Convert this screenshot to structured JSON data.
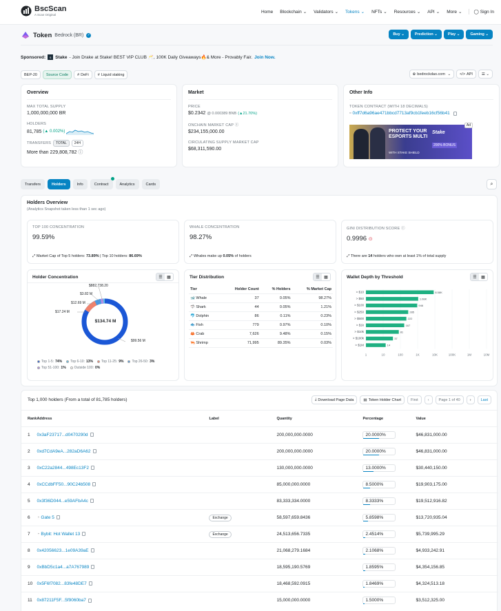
{
  "header": {
    "brand": "BscScan",
    "brand_sub": "A Scan Original",
    "nav": [
      "Home",
      "Blockchain",
      "Validators",
      "Tokens",
      "NFTs",
      "Resources",
      "API",
      "More"
    ],
    "signin": "Sign In"
  },
  "token": {
    "label": "Token",
    "name": "Bedrock (BR)",
    "buttons": [
      "Buy",
      "Prediction",
      "Play",
      "Gaming"
    ]
  },
  "sponsor": {
    "label": "Sponsored:",
    "brand": "Stake",
    "text": " - Join Drake at Stake! BEST VIP CLUB 🥂, 100K Daily Giveaways🔥& More - Provably Fair.",
    "link": "Join Now."
  },
  "tags": [
    "BEP-20",
    "Source Code",
    "DeFi",
    "Liquid staking"
  ],
  "site_link": "bedrockdao.com",
  "api_label": "API",
  "overview": {
    "title": "Overview",
    "max_supply_label": "MAX TOTAL SUPPLY",
    "max_supply": "1,000,000,000 BR",
    "holders_label": "HOLDERS",
    "holders": "81,785",
    "holders_change": "(▲ 0.002%)",
    "transfers_label": "TRANSFERS",
    "transfer_tabs": [
      "TOTAL",
      "24H"
    ],
    "transfers": "More than 229,808,782"
  },
  "market": {
    "title": "Market",
    "price_label": "PRICE",
    "price": "$0.2342",
    "price_bnb": "@ 0.000389 BNB",
    "price_change": "(▲21.70%)",
    "onchain_cap_label": "ONCHAIN MARKET CAP",
    "onchain_cap": "$234,155,000.00",
    "circ_cap_label": "CIRCULATING SUPPLY MARKET CAP",
    "circ_cap": "$68,311,590.00"
  },
  "other": {
    "title": "Other Info",
    "contract_label": "TOKEN CONTRACT (WITH 18 DECIMALS)",
    "contract": "0xff7d6a96ae471bbcd7713af9cb1feeb16cf56b41",
    "ad_badge": "Ad",
    "ad_headline": "PROTECT YOUR ESPORTS MULTI",
    "ad_sub": "WITH STAKE SHIELD",
    "ad_brand": "Stake",
    "ad_bonus": "200% BONUS"
  },
  "page_tabs": [
    "Transfers",
    "Holders",
    "Info",
    "Contract",
    "Analytics",
    "Cards"
  ],
  "holders_overview": {
    "title": "Holders Overview",
    "snapshot": "(Analytics Snapshot taken less than 1 sec ago)",
    "top100_label": "TOP 100 CONCENTRATION",
    "top100": "99.59%",
    "top100_note_a": "Market Cap of Top 5 holders: ",
    "top100_note_b": "73.89%",
    "top100_note_c": " | Top 10 holders: ",
    "top100_note_d": "86.69%",
    "whale_label": "WHALE CONCENTRATION",
    "whale": "98.27%",
    "whale_note_a": "Whales make up ",
    "whale_note_b": "0.05%",
    "whale_note_c": " of holders",
    "gini_label": "GINI DISTRIBUTION SCORE",
    "gini": "0.9996",
    "gini_note_a": "There are ",
    "gini_note_b": "14",
    "gini_note_c": " holders who own at least 1% of total supply"
  },
  "concentration": {
    "title": "Holder Concentration",
    "center": "$134.74 M",
    "labels": [
      "$882,738.20",
      "$3.82 M",
      "$12.69 M",
      "$17.24 M",
      "$99.56 M"
    ],
    "legend": [
      {
        "name": "Top 1-5:",
        "pct": "74%",
        "color": "#1b57d6"
      },
      {
        "name": "Top 6-10:",
        "pct": "13%",
        "color": "#5bc0e6"
      },
      {
        "name": "Top 11-25:",
        "pct": "9%",
        "color": "#f0826c"
      },
      {
        "name": "Top 26-50:",
        "pct": "3%",
        "color": "#4a98e0"
      },
      {
        "name": "Top 51-100:",
        "pct": "1%",
        "color": "#b48de8"
      },
      {
        "name": "Outside 100:",
        "pct": "0%",
        "color": "#ffffff"
      }
    ]
  },
  "tier": {
    "title": "Tier Distribution",
    "headers": [
      "Tier",
      "Holder Count",
      "% Holders",
      "% Market Cap"
    ],
    "rows": [
      {
        "icon": "whale-icon",
        "name": "Whale",
        "count": "37",
        "holders": "0.05%",
        "cap": "98.27%"
      },
      {
        "icon": "shark-icon",
        "name": "Shark",
        "count": "44",
        "holders": "0.05%",
        "cap": "1.21%"
      },
      {
        "icon": "dolphin-icon",
        "name": "Dolphin",
        "count": "86",
        "holders": "0.11%",
        "cap": "0.23%"
      },
      {
        "icon": "fish-icon",
        "name": "Fish",
        "count": "779",
        "holders": "0.97%",
        "cap": "0.10%"
      },
      {
        "icon": "crab-icon",
        "name": "Crab",
        "count": "7,626",
        "holders": "9.48%",
        "cap": "0.15%"
      },
      {
        "icon": "shrimp-icon",
        "name": "Shrimp",
        "count": "71,995",
        "holders": "89.35%",
        "cap": "0.03%"
      }
    ]
  },
  "chart_data": {
    "type": "bar",
    "title": "Wallet Depth by Threshold",
    "orientation": "horizontal",
    "scale": "log",
    "categories": [
      "> $10",
      "> $50",
      "> $100",
      "> $250",
      "> $500",
      "> $1k",
      "> $10k",
      "> $100k",
      "> $1M"
    ],
    "values": [
      8580,
      1080,
      946,
      285,
      222,
      167,
      81,
      37,
      14
    ],
    "value_labels": [
      "8.58K",
      "1.08K",
      "946",
      "285",
      "222",
      "167",
      "81",
      "37",
      "14"
    ],
    "xticks": [
      "1",
      "10",
      "100",
      "1K",
      "10K",
      "100K",
      "1M",
      "10M"
    ]
  },
  "holders_table": {
    "title": "Top 1,000 holders (From a total of 81,785 holders)",
    "download": "Download Page Data",
    "chart_btn": "Token Holder Chart",
    "first": "First",
    "page": "Page 1 of 40",
    "last": "Last",
    "headers": [
      "Rank",
      "Address",
      "Label",
      "Quantity",
      "Percentage",
      "Value"
    ],
    "rows": [
      {
        "rank": "1",
        "addr": "0x3aF23717...d0470290d",
        "label": "",
        "qty": "200,000,000.0000",
        "pct": "20.0000%",
        "pctv": 0.2,
        "value": "$46,831,000.00"
      },
      {
        "rank": "2",
        "addr": "0xd7CdA9eA...282aD6A62",
        "label": "",
        "qty": "200,000,000.0000",
        "pct": "20.0000%",
        "pctv": 0.2,
        "value": "$46,831,000.00"
      },
      {
        "rank": "3",
        "addr": "0xC22a2844...498Ec13F2",
        "label": "",
        "qty": "130,000,000.0000",
        "pct": "13.0000%",
        "pctv": 0.13,
        "value": "$30,440,150.00"
      },
      {
        "rank": "4",
        "addr": "0xCCdbFF50...90C24b508",
        "label": "",
        "qty": "85,000,000.0000",
        "pct": "8.5000%",
        "pctv": 0.085,
        "value": "$19,903,175.00"
      },
      {
        "rank": "5",
        "addr": "0x3f36D044...e59AFbA4c",
        "label": "",
        "qty": "83,333,334.0000",
        "pct": "8.3333%",
        "pctv": 0.083,
        "value": "$19,512,916.82"
      },
      {
        "rank": "6",
        "addr": "Gate 5",
        "label": "Exchange",
        "qty": "58,597,659.8436",
        "pct": "5.8598%",
        "pctv": 0.059,
        "value": "$13,720,935.04"
      },
      {
        "rank": "7",
        "addr": "Bybit: Hot Wallet 13",
        "label": "Exchange",
        "qty": "24,513,656.7335",
        "pct": "2.4514%",
        "pctv": 0.025,
        "value": "$5,739,995.29"
      },
      {
        "rank": "8",
        "addr": "0x42056623...1e09A39aE",
        "label": "",
        "qty": "21,068,279.1684",
        "pct": "2.1068%",
        "pctv": 0.021,
        "value": "$4,933,242.91"
      },
      {
        "rank": "9",
        "addr": "0xBbD5c1a4...a7A767989",
        "label": "",
        "qty": "18,595,190.5769",
        "pct": "1.8595%",
        "pctv": 0.019,
        "value": "$4,354,156.85"
      },
      {
        "rank": "10",
        "addr": "0x5F6f7082...83fe48DE7",
        "label": "",
        "qty": "18,468,592.0915",
        "pct": "1.8469%",
        "pctv": 0.018,
        "value": "$4,324,513.18"
      },
      {
        "rank": "11",
        "addr": "0x87211F5F...5f9060ba7",
        "label": "",
        "qty": "15,000,000.0000",
        "pct": "1.5000%",
        "pctv": 0.015,
        "value": "$3,512,325.00"
      }
    ]
  }
}
